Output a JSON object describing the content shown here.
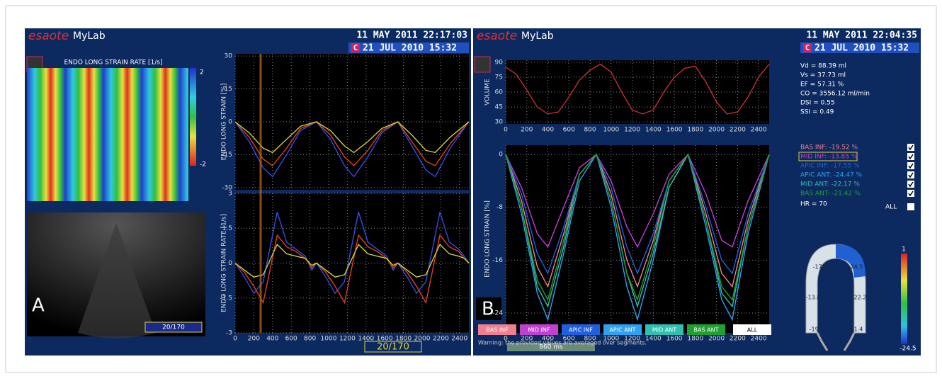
{
  "panel_a": {
    "label": "A",
    "logo": "esaote",
    "logo_sub": "MyLab",
    "date": "11 MAY 2011 22:17:03",
    "badge": "C",
    "date2": "21 JUL 2010 15:32",
    "map": {
      "title": "ENDO LONG STRAIN RATE [1/s]",
      "scale_max": "2",
      "scale_min": "-2"
    },
    "echo_frame": "20/170",
    "frame": "20/170",
    "strain": {
      "type": "line",
      "ylabel": "ENDO LONG STRAIN [%]",
      "xlim": [
        0,
        2500
      ],
      "ylim": [
        -31,
        31
      ],
      "yticks": [
        30,
        15,
        0,
        -15,
        -30
      ],
      "xticks": [
        0,
        200,
        400,
        600,
        800,
        1000,
        1200,
        1400,
        1600,
        1800,
        2000,
        2200,
        2400
      ],
      "xtick_labels": false,
      "x": [
        0,
        150,
        300,
        400,
        550,
        700,
        870,
        1020,
        1170,
        1270,
        1420,
        1570,
        1740,
        1890,
        2040,
        2140,
        2300,
        2500
      ],
      "series": [
        {
          "color": "#3050e0",
          "values": [
            0,
            -9,
            -21,
            -25,
            -15,
            -4,
            0,
            -8,
            -20,
            -25,
            -16,
            -5,
            0,
            -11,
            -22,
            -25,
            -12,
            0
          ]
        },
        {
          "color": "#e04020",
          "values": [
            0,
            -7,
            -17,
            -20,
            -12,
            -3,
            0,
            -6,
            -16,
            -20,
            -13,
            -4,
            0,
            -9,
            -18,
            -20,
            -10,
            0
          ]
        },
        {
          "color": "#c8d040",
          "values": [
            0,
            -5,
            -12,
            -14,
            -8,
            -2,
            0,
            -4,
            -11,
            -14,
            -9,
            -3,
            0,
            -6,
            -13,
            -14,
            -7,
            0
          ]
        }
      ]
    },
    "rate": {
      "type": "line",
      "ylabel": "ENDO LONG STRAIN RATE [1/s]",
      "xlim": [
        0,
        2500
      ],
      "ylim": [
        -3,
        3
      ],
      "yticks": [
        3,
        1.5,
        0,
        -1.5,
        -3
      ],
      "xticks": [
        0,
        200,
        400,
        600,
        800,
        1000,
        1200,
        1400,
        1600,
        1800,
        2000,
        2200,
        2400
      ],
      "xtick_labels": true,
      "x": [
        0,
        100,
        200,
        300,
        450,
        550,
        650,
        750,
        820,
        870,
        970,
        1070,
        1170,
        1320,
        1420,
        1520,
        1620,
        1690,
        1740,
        1840,
        1940,
        2040,
        2190,
        2290,
        2390,
        2450,
        2500
      ],
      "series": [
        {
          "color": "#3050e0",
          "values": [
            0,
            -0.6,
            -1.3,
            -0.8,
            2.2,
            0.9,
            0.6,
            0.3,
            -0.3,
            0,
            -0.6,
            -1.3,
            -0.8,
            2.2,
            0.9,
            0.6,
            0.3,
            -0.3,
            0,
            -0.6,
            -1.3,
            -0.8,
            2.2,
            0.9,
            0.6,
            0.3,
            0
          ]
        },
        {
          "color": "#e04020",
          "values": [
            0,
            -0.4,
            -1.0,
            -1.7,
            1.2,
            0.7,
            0.5,
            0.2,
            -0.2,
            0,
            -0.4,
            -1.0,
            -1.7,
            1.2,
            0.7,
            0.5,
            0.2,
            -0.2,
            0,
            -0.4,
            -1.0,
            -1.7,
            1.2,
            0.7,
            0.5,
            0.2,
            0
          ]
        },
        {
          "color": "#c8d040",
          "values": [
            0,
            -0.3,
            -0.6,
            -0.5,
            0.8,
            0.4,
            0.3,
            0.2,
            -0.1,
            0,
            -0.3,
            -0.6,
            -0.5,
            0.8,
            0.4,
            0.3,
            0.2,
            -0.1,
            0,
            -0.3,
            -0.6,
            -0.5,
            0.8,
            0.4,
            0.3,
            0.2,
            0
          ]
        }
      ]
    }
  },
  "panel_b": {
    "label": "B",
    "logo": "esaote",
    "logo_sub": "MyLab",
    "date": "11 MAY 2011 22:04:35",
    "badge": "C",
    "date2": "21 JUL 2010 15:32",
    "volume": {
      "type": "line",
      "ylabel": "VOLUME",
      "xlim": [
        0,
        2500
      ],
      "ylim": [
        28,
        92
      ],
      "yticks": [
        90,
        75,
        60,
        45,
        30
      ],
      "xticks": [
        0,
        200,
        400,
        600,
        800,
        1000,
        1200,
        1400,
        1600,
        1800,
        2000,
        2200,
        2400
      ],
      "xtick_labels": true,
      "x": [
        0,
        100,
        200,
        300,
        400,
        500,
        600,
        700,
        800,
        900,
        1000,
        1100,
        1200,
        1300,
        1400,
        1500,
        1600,
        1700,
        1800,
        1900,
        2000,
        2100,
        2200,
        2300,
        2400,
        2500
      ],
      "series": [
        {
          "color": "#c03030",
          "values": [
            85,
            78,
            62,
            45,
            38,
            40,
            55,
            72,
            82,
            88,
            80,
            60,
            42,
            38,
            42,
            60,
            75,
            84,
            86,
            70,
            50,
            38,
            40,
            55,
            75,
            88
          ]
        }
      ]
    },
    "stats": [
      "Vd = 88.39 ml",
      "Vs = 37.73 ml",
      "EF = 57.31 %",
      "CO = 3556.12 ml/min",
      "DSI = 0.55",
      "SSI = 0.49"
    ],
    "strain": {
      "type": "line",
      "ylabel": "ENDO LONG STRAIN [%]",
      "xlim": [
        0,
        2500
      ],
      "ylim": [
        -27,
        1.4
      ],
      "yticks": [
        0,
        -8,
        -16,
        -24
      ],
      "xticks": [
        0,
        200,
        400,
        600,
        800,
        1000,
        1200,
        1400,
        1600,
        1800,
        2000,
        2200,
        2400
      ],
      "xtick_labels": true,
      "x": [
        0,
        150,
        300,
        400,
        550,
        700,
        860,
        1000,
        1150,
        1250,
        1400,
        1550,
        1730,
        1900,
        2050,
        2150,
        2300,
        2500
      ],
      "series": [
        {
          "name": "BAS INF",
          "color": "#f08090",
          "values": [
            0,
            -7,
            -17,
            -20,
            -12,
            -3,
            0,
            -6,
            -16,
            -20,
            -13,
            -4,
            0,
            -9,
            -18,
            -20,
            -10,
            0
          ]
        },
        {
          "name": "MID INF",
          "color": "#c040d0",
          "values": [
            0,
            -5,
            -12,
            -14,
            -8,
            -2,
            0,
            -4,
            -11,
            -14,
            -9,
            -3,
            0,
            -6,
            -13,
            -14,
            -7,
            0
          ]
        },
        {
          "name": "APIC INF",
          "color": "#2060e0",
          "values": [
            0,
            -6,
            -15,
            -18,
            -11,
            -3,
            0,
            -5,
            -14,
            -18,
            -12,
            -4,
            0,
            -8,
            -16,
            -18,
            -9,
            0
          ]
        },
        {
          "name": "APIC ANT",
          "color": "#30a0f0",
          "values": [
            0,
            -9,
            -21,
            -25,
            -15,
            -4,
            0,
            -8,
            -20,
            -25,
            -16,
            -5,
            0,
            -11,
            -22,
            -25,
            -12,
            0
          ]
        },
        {
          "name": "MID ANT",
          "color": "#30c0b0",
          "values": [
            0,
            -8,
            -20,
            -23,
            -14,
            -3,
            0,
            -7,
            -18,
            -23,
            -15,
            -5,
            0,
            -10,
            -21,
            -23,
            -11,
            0
          ]
        },
        {
          "name": "BAS ANT",
          "color": "#20a030",
          "values": [
            0,
            -8,
            -19,
            -22,
            -13,
            -3,
            0,
            -7,
            -18,
            -22,
            -14,
            -4,
            0,
            -10,
            -20,
            -22,
            -11,
            0
          ]
        }
      ]
    },
    "legend": [
      "BAS INF: -19.52 %",
      "MID INF: -13.85 %",
      "APIC INF: -17.55 %",
      "APIC ANT: -24.47 %",
      "MID ANT: -22.17 %",
      "BAS ANT: -21.42 %"
    ],
    "hr": "HR = 70",
    "all": "ALL",
    "button_all": "ALL",
    "interval": "860 ms",
    "warning": "Warning: the provided values are averaged over segments.",
    "segments": [
      "-17.6",
      "-24.5",
      "-13.8",
      "-22.2",
      "-19.5",
      "-21.4"
    ],
    "scale_max": "1",
    "scale_min": "-24.5"
  }
}
